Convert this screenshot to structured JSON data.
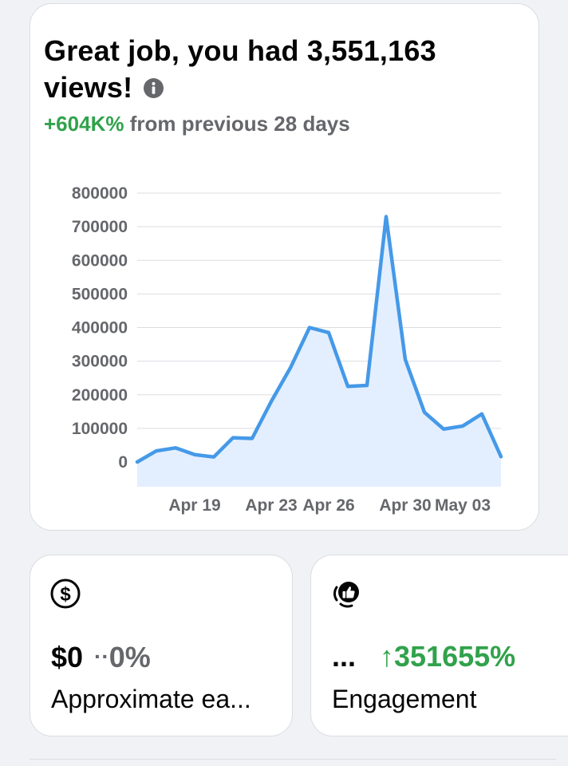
{
  "views_card": {
    "headline_main": "Great job, you had 3,551,163",
    "headline_end": "views!",
    "info_icon": "info-icon",
    "change_value": "+604K%",
    "change_text": "from previous 28 days"
  },
  "chart_data": {
    "type": "area",
    "title": "",
    "xlabel": "",
    "ylabel": "",
    "ylim": [
      0,
      800000
    ],
    "yticks": [
      "0",
      "100000",
      "200000",
      "300000",
      "400000",
      "500000",
      "600000",
      "700000",
      "800000"
    ],
    "xticks": [
      "Apr 19",
      "Apr 23",
      "Apr 26",
      "Apr 30",
      "May 03"
    ],
    "grid": true,
    "line_color": "#4599e8",
    "fill_color": "#e3efff",
    "x": [
      "Apr 16",
      "Apr 17",
      "Apr 18",
      "Apr 19",
      "Apr 20",
      "Apr 21",
      "Apr 22",
      "Apr 23",
      "Apr 24",
      "Apr 25",
      "Apr 26",
      "Apr 27",
      "Apr 28",
      "Apr 29",
      "Apr 30",
      "May 01",
      "May 02",
      "May 03",
      "May 04",
      "May 05"
    ],
    "values": [
      0,
      33000,
      42000,
      22000,
      15000,
      72000,
      70000,
      180000,
      280000,
      400000,
      385000,
      225000,
      228000,
      730000,
      305000,
      148000,
      98000,
      107000,
      143000,
      16000
    ]
  },
  "earnings_card": {
    "icon": "dollar-circle-icon",
    "value": "$0",
    "trend_icon": "··",
    "change": "0%",
    "label": "Approximate ea..."
  },
  "engagement_card": {
    "icon": "thumbs-up-icon",
    "value": "...",
    "trend_icon": "↑",
    "change": "351655%",
    "label": "Engagement"
  },
  "colors": {
    "positive": "#31a24c",
    "muted": "#65676b",
    "text": "#050505"
  }
}
